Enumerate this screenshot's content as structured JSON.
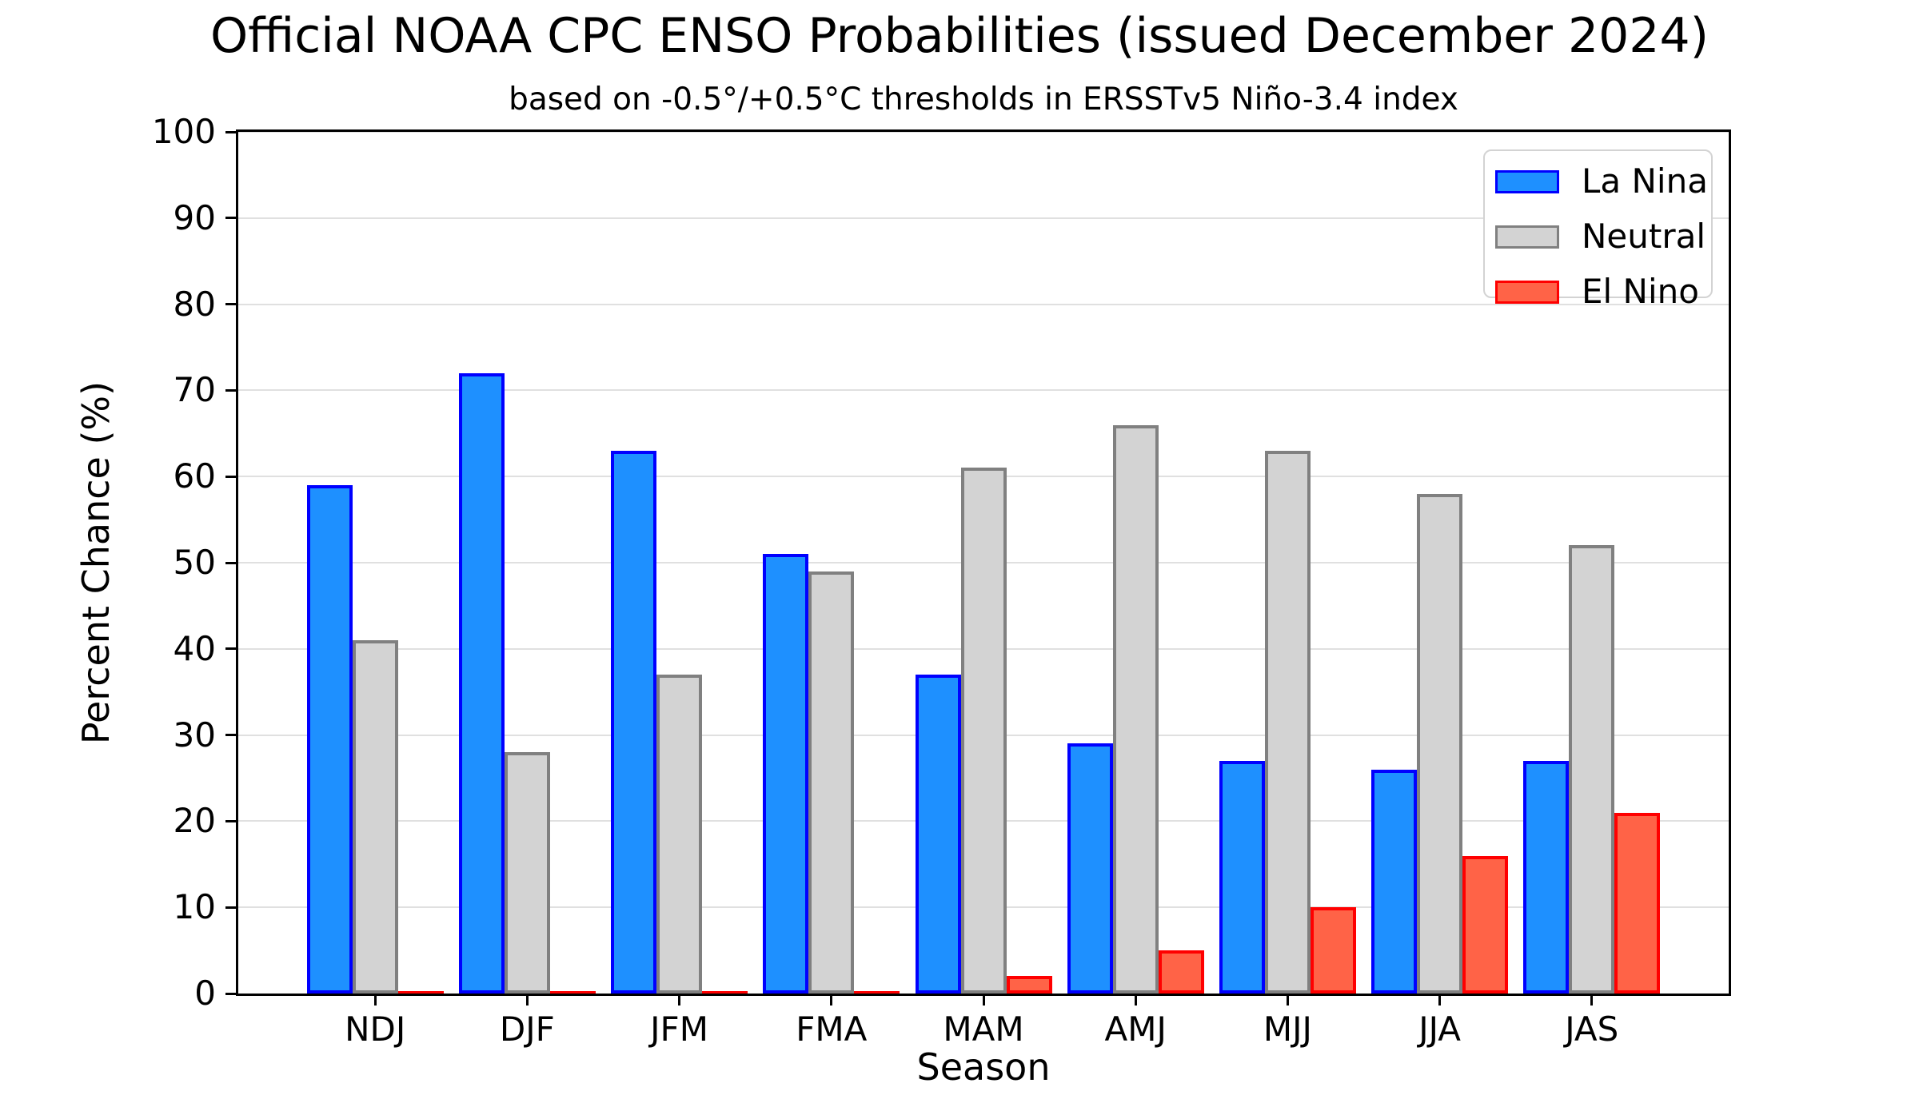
{
  "title": "Official NOAA CPC ENSO Probabilities (issued December 2024)",
  "subtitle": "based on -0.5°/+0.5°C thresholds in ERSSTv5 Niño-3.4 index",
  "chart_data": {
    "type": "bar",
    "title": "Official NOAA CPC ENSO Probabilities (issued December 2024)",
    "subtitle": "based on -0.5°/+0.5°C thresholds in ERSSTv5 Niño-3.4 index",
    "xlabel": "Season",
    "ylabel": "Percent Chance (%)",
    "categories": [
      "NDJ",
      "DJF",
      "JFM",
      "FMA",
      "MAM",
      "AMJ",
      "MJJ",
      "JJA",
      "JAS"
    ],
    "series": [
      {
        "name": "La Nina",
        "fill": "#1e90ff",
        "edge": "#0000ff",
        "values": [
          59,
          72,
          63,
          51,
          37,
          29,
          27,
          26,
          27
        ]
      },
      {
        "name": "Neutral",
        "fill": "#d3d3d3",
        "edge": "#808080",
        "values": [
          41,
          28,
          37,
          49,
          61,
          66,
          63,
          58,
          52
        ]
      },
      {
        "name": "El Nino",
        "fill": "#ff6347",
        "edge": "#ff0000",
        "values": [
          0,
          0,
          0,
          0,
          2,
          5,
          10,
          16,
          21
        ]
      }
    ],
    "ylim": [
      0,
      100
    ],
    "yticks": [
      0,
      10,
      20,
      30,
      40,
      50,
      60,
      70,
      80,
      90,
      100
    ],
    "grid": "horizontal",
    "gridline_color": "#e0e0e0",
    "legend_position": "upper right",
    "legend_order": [
      "La Nina",
      "Neutral",
      "El Nino"
    ]
  }
}
